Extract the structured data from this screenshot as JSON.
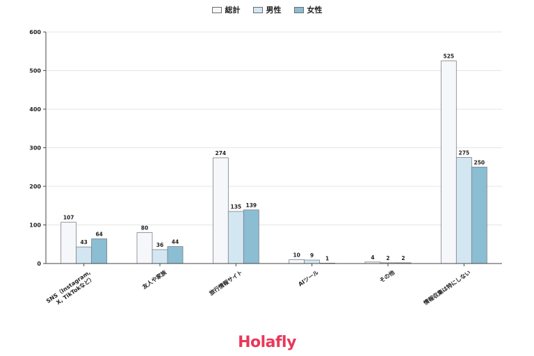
{
  "chart_data": {
    "type": "bar",
    "categories": [
      [
        "SNS（Instagram,",
        "X, TikTokなど）"
      ],
      [
        "友人や家族"
      ],
      [
        "旅行情報サイト"
      ],
      [
        "AIツール"
      ],
      [
        "その他"
      ],
      [
        "情報収集は特にしない"
      ]
    ],
    "series": [
      {
        "name": "総計",
        "values": [
          107,
          80,
          274,
          10,
          4,
          525
        ]
      },
      {
        "name": "男性",
        "values": [
          43,
          36,
          135,
          9,
          2,
          275
        ]
      },
      {
        "name": "女性",
        "values": [
          64,
          44,
          139,
          1,
          2,
          250
        ]
      }
    ],
    "ylim": [
      0,
      600
    ],
    "yticks": [
      0,
      100,
      200,
      300,
      400,
      500,
      600
    ],
    "grid": true,
    "legend_position": "top-center",
    "title": "",
    "xlabel": "",
    "ylabel": ""
  },
  "colors": {
    "series": [
      "#f6f7fb",
      "#d3e7f2",
      "#8bbdd3"
    ],
    "bar_stroke": "#7a7f86",
    "axis": "#444444",
    "grid": "#e4e4e4",
    "brand": "#e8385a"
  },
  "logo": {
    "text": "Holafly"
  }
}
